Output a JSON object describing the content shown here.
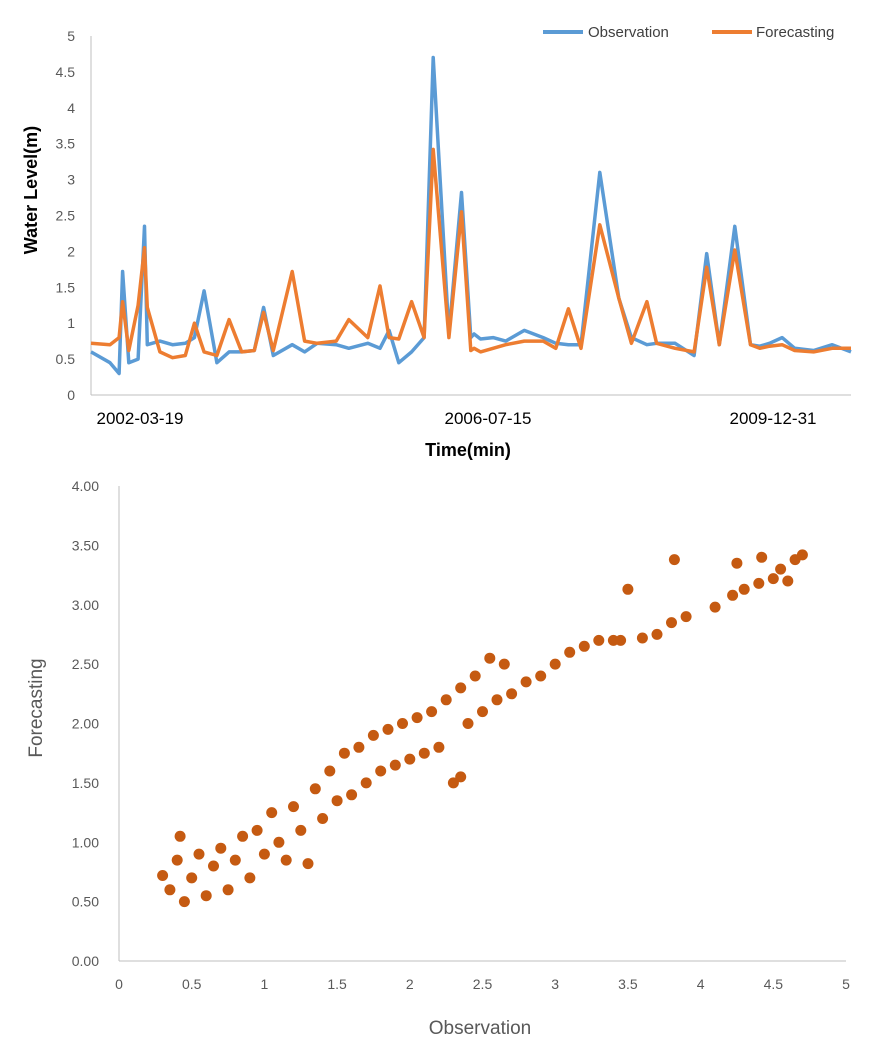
{
  "colors": {
    "observation": "#5B9BD5",
    "forecasting": "#ED7D31",
    "scatter": "#C55A11",
    "axis": "#BFBFBF"
  },
  "chart_data": [
    {
      "type": "line",
      "title": "",
      "xlabel": "Time(min)",
      "ylabel": "Water Level(m)",
      "ylim": [
        0,
        5
      ],
      "y_ticks": [
        "0",
        "0.5",
        "1",
        "1.5",
        "2",
        "2.5",
        "3",
        "3.5",
        "4",
        "4.5",
        "5"
      ],
      "x_range": [
        "2001-06-01",
        "2011-07-01"
      ],
      "x_tick_labels": [
        "2002-03-19",
        "2006-07-15",
        "2009-12-31"
      ],
      "legend": "top-right",
      "series": [
        {
          "name": "Observation",
          "x": [
            "2001-06-01",
            "2001-09-01",
            "2001-10-15",
            "2001-11-01",
            "2001-12-01",
            "2002-01-15",
            "2002-02-15",
            "2002-03-01",
            "2002-05-01",
            "2002-07-01",
            "2002-09-01",
            "2002-10-15",
            "2002-12-01",
            "2003-02-01",
            "2003-04-01",
            "2003-06-01",
            "2003-08-01",
            "2003-09-15",
            "2003-11-01",
            "2004-02-01",
            "2004-04-01",
            "2004-06-01",
            "2004-09-01",
            "2004-11-01",
            "2005-02-01",
            "2005-04-01",
            "2005-05-15",
            "2005-07-01",
            "2005-09-01",
            "2005-11-01",
            "2005-12-15",
            "2006-03-01",
            "2006-05-01",
            "2006-06-15",
            "2006-07-01",
            "2006-08-01",
            "2006-10-01",
            "2006-12-01",
            "2007-03-01",
            "2007-06-01",
            "2007-08-01",
            "2007-10-01",
            "2007-12-01",
            "2008-03-01",
            "2008-06-01",
            "2008-08-01",
            "2008-10-15",
            "2008-12-01",
            "2009-03-01",
            "2009-06-01",
            "2009-08-01",
            "2009-10-01",
            "2009-12-15",
            "2010-03-01",
            "2010-04-15",
            "2010-06-01",
            "2010-08-01",
            "2010-10-01",
            "2011-01-01",
            "2011-04-01",
            "2011-07-01"
          ],
          "values": [
            0.6,
            0.45,
            0.3,
            1.72,
            0.45,
            0.5,
            2.35,
            0.7,
            0.75,
            0.7,
            0.72,
            0.8,
            1.45,
            0.45,
            0.6,
            0.6,
            0.62,
            1.22,
            0.55,
            0.7,
            0.6,
            0.72,
            0.7,
            0.65,
            0.72,
            0.65,
            0.9,
            0.45,
            0.6,
            0.8,
            4.7,
            0.85,
            2.82,
            0.8,
            0.85,
            0.78,
            0.8,
            0.75,
            0.9,
            0.8,
            0.72,
            0.7,
            0.7,
            3.1,
            1.35,
            0.8,
            0.7,
            0.72,
            0.72,
            0.55,
            1.97,
            0.7,
            2.35,
            0.7,
            0.68,
            0.72,
            0.8,
            0.65,
            0.62,
            0.7,
            0.6
          ]
        },
        {
          "name": "Forecasting",
          "x": [
            "2001-06-01",
            "2001-09-01",
            "2001-10-15",
            "2001-11-01",
            "2001-12-01",
            "2002-01-15",
            "2002-02-15",
            "2002-03-01",
            "2002-05-01",
            "2002-07-01",
            "2002-09-01",
            "2002-10-15",
            "2002-12-01",
            "2003-02-01",
            "2003-04-01",
            "2003-06-01",
            "2003-08-01",
            "2003-09-15",
            "2003-11-01",
            "2004-02-01",
            "2004-04-01",
            "2004-06-01",
            "2004-09-01",
            "2004-11-01",
            "2005-02-01",
            "2005-04-01",
            "2005-05-15",
            "2005-07-01",
            "2005-09-01",
            "2005-11-01",
            "2005-12-15",
            "2006-03-01",
            "2006-05-01",
            "2006-06-15",
            "2006-07-01",
            "2006-08-01",
            "2006-10-01",
            "2006-12-01",
            "2007-03-01",
            "2007-06-01",
            "2007-08-01",
            "2007-10-01",
            "2007-12-01",
            "2008-03-01",
            "2008-06-01",
            "2008-08-01",
            "2008-10-15",
            "2008-12-01",
            "2009-03-01",
            "2009-06-01",
            "2009-08-01",
            "2009-10-01",
            "2009-12-15",
            "2010-03-01",
            "2010-04-15",
            "2010-06-01",
            "2010-08-01",
            "2010-10-01",
            "2011-01-01",
            "2011-04-01",
            "2011-07-01"
          ],
          "values": [
            0.72,
            0.7,
            0.8,
            1.3,
            0.62,
            1.25,
            2.05,
            1.22,
            0.6,
            0.52,
            0.55,
            1.0,
            0.6,
            0.55,
            1.05,
            0.6,
            0.62,
            1.15,
            0.62,
            1.72,
            0.75,
            0.72,
            0.75,
            1.05,
            0.8,
            1.52,
            0.8,
            0.78,
            1.3,
            0.8,
            3.42,
            0.8,
            2.55,
            0.62,
            0.65,
            0.6,
            0.65,
            0.7,
            0.75,
            0.75,
            0.65,
            1.2,
            0.65,
            2.37,
            1.35,
            0.72,
            1.3,
            0.72,
            0.65,
            0.6,
            1.78,
            0.7,
            2.02,
            0.7,
            0.65,
            0.68,
            0.7,
            0.62,
            0.6,
            0.65,
            0.65
          ]
        }
      ]
    },
    {
      "type": "scatter",
      "title": "",
      "xlabel": "Observation",
      "ylabel": "Forecasting",
      "xlim": [
        0,
        5
      ],
      "ylim": [
        0,
        4
      ],
      "x_ticks": [
        "0",
        "0.5",
        "1",
        "1.5",
        "2",
        "2.5",
        "3",
        "3.5",
        "4",
        "4.5",
        "5"
      ],
      "y_ticks": [
        "0.00",
        "0.50",
        "1.00",
        "1.50",
        "2.00",
        "2.50",
        "3.00",
        "3.50",
        "4.00"
      ],
      "points": [
        [
          0.3,
          0.72
        ],
        [
          0.35,
          0.6
        ],
        [
          0.4,
          0.85
        ],
        [
          0.42,
          1.05
        ],
        [
          0.45,
          0.5
        ],
        [
          0.5,
          0.7
        ],
        [
          0.55,
          0.9
        ],
        [
          0.6,
          0.55
        ],
        [
          0.65,
          0.8
        ],
        [
          0.7,
          0.95
        ],
        [
          0.75,
          0.6
        ],
        [
          0.8,
          0.85
        ],
        [
          0.85,
          1.05
        ],
        [
          0.9,
          0.7
        ],
        [
          0.95,
          1.1
        ],
        [
          1.0,
          0.9
        ],
        [
          1.05,
          1.25
        ],
        [
          1.1,
          1.0
        ],
        [
          1.15,
          0.85
        ],
        [
          1.2,
          1.3
        ],
        [
          1.25,
          1.1
        ],
        [
          1.3,
          0.82
        ],
        [
          1.35,
          1.45
        ],
        [
          1.4,
          1.2
        ],
        [
          1.45,
          1.6
        ],
        [
          1.5,
          1.35
        ],
        [
          1.55,
          1.75
        ],
        [
          1.6,
          1.4
        ],
        [
          1.65,
          1.8
        ],
        [
          1.7,
          1.5
        ],
        [
          1.75,
          1.9
        ],
        [
          1.8,
          1.6
        ],
        [
          1.85,
          1.95
        ],
        [
          1.9,
          1.65
        ],
        [
          1.95,
          2.0
        ],
        [
          2.0,
          1.7
        ],
        [
          2.05,
          2.05
        ],
        [
          2.1,
          1.75
        ],
        [
          2.15,
          2.1
        ],
        [
          2.2,
          1.8
        ],
        [
          2.25,
          2.2
        ],
        [
          2.3,
          1.5
        ],
        [
          2.35,
          2.3
        ],
        [
          2.35,
          1.55
        ],
        [
          2.4,
          2.0
        ],
        [
          2.45,
          2.4
        ],
        [
          2.5,
          2.1
        ],
        [
          2.55,
          2.55
        ],
        [
          2.6,
          2.2
        ],
        [
          2.65,
          2.5
        ],
        [
          2.7,
          2.25
        ],
        [
          2.8,
          2.35
        ],
        [
          2.9,
          2.4
        ],
        [
          3.0,
          2.5
        ],
        [
          3.1,
          2.6
        ],
        [
          3.2,
          2.65
        ],
        [
          3.3,
          2.7
        ],
        [
          3.4,
          2.7
        ],
        [
          3.45,
          2.7
        ],
        [
          3.5,
          3.13
        ],
        [
          3.6,
          2.72
        ],
        [
          3.7,
          2.75
        ],
        [
          3.8,
          2.85
        ],
        [
          3.82,
          3.38
        ],
        [
          3.9,
          2.9
        ],
        [
          4.1,
          2.98
        ],
        [
          4.22,
          3.08
        ],
        [
          4.25,
          3.35
        ],
        [
          4.3,
          3.13
        ],
        [
          4.4,
          3.18
        ],
        [
          4.42,
          3.4
        ],
        [
          4.5,
          3.22
        ],
        [
          4.55,
          3.3
        ],
        [
          4.6,
          3.2
        ],
        [
          4.65,
          3.38
        ],
        [
          4.7,
          3.42
        ]
      ]
    }
  ]
}
